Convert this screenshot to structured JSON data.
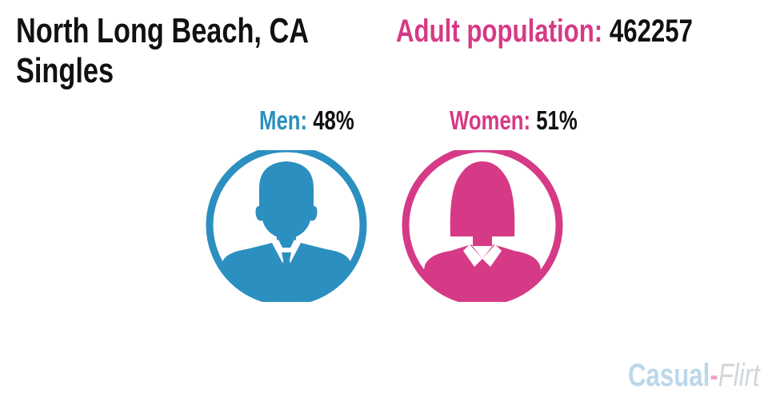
{
  "title": {
    "line1": "North Long Beach, CA",
    "line2": "Singles"
  },
  "adult_population": {
    "label": "Adult population:",
    "value": "462257"
  },
  "men": {
    "label": "Men:",
    "value": "48%",
    "color": "#2b8fc0",
    "icon": "man-silhouette-icon"
  },
  "women": {
    "label": "Women:",
    "value": "51%",
    "color": "#d63a86",
    "icon": "woman-silhouette-icon"
  },
  "logo": {
    "part1": "Casual",
    "dash": "-",
    "part2": "Flirt"
  }
}
